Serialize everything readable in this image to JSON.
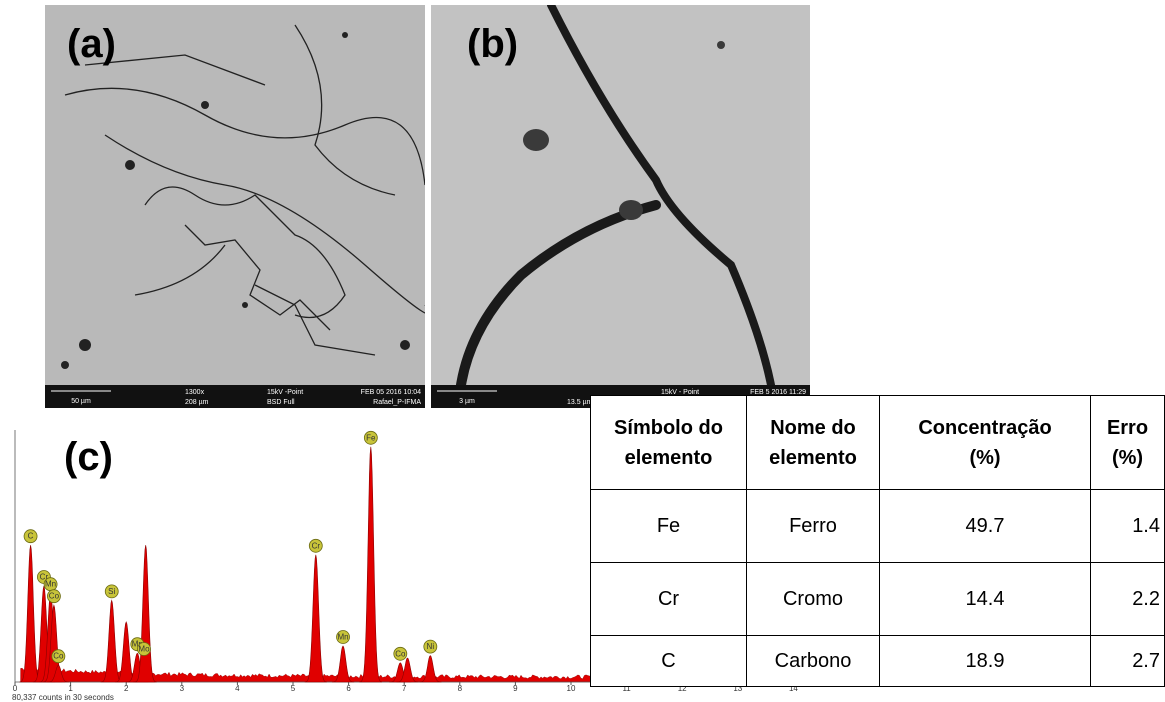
{
  "panels": {
    "a": "(a)",
    "b": "(b)",
    "c": "(c)"
  },
  "image_a": {
    "scale": "50 µm",
    "mag": "1300x",
    "field": "208 µm",
    "beam": "15kV -Point",
    "detector": "BSD Full",
    "date": "FEB 05 2016 10:04",
    "user": "Rafael_P-IFMA"
  },
  "image_b": {
    "scale": "3 µm",
    "field": "13.5 µm",
    "beam": "15kV - Point",
    "date": "FEB 5 2016 11:29"
  },
  "chart_data": {
    "type": "spectrum",
    "color": "#e00000",
    "x": [
      0.28,
      0.52,
      0.64,
      0.7,
      0.78,
      1.74,
      2.0,
      2.2,
      2.32,
      2.35,
      5.41,
      5.9,
      6.4,
      6.93,
      7.06,
      7.47
    ],
    "values": [
      57,
      40,
      37,
      32,
      7,
      34,
      25,
      12,
      10,
      57,
      53,
      15,
      98,
      8,
      10,
      11
    ],
    "labels": [
      "C",
      "Cr",
      "Mn",
      "Co",
      "Co",
      "Si",
      null,
      "Mn",
      "Mo",
      null,
      "Cr",
      "Mn",
      "Fe",
      "Co",
      null,
      "Ni"
    ],
    "xlim": [
      0,
      15
    ],
    "ylim": [
      0,
      100
    ],
    "xticks": [
      0,
      1,
      2,
      3,
      4,
      5,
      6,
      7,
      8,
      9,
      10,
      11,
      12,
      13,
      14
    ],
    "footer": "80,337 counts in 30 seconds"
  },
  "table": {
    "header": [
      [
        "Símbolo do",
        "elemento"
      ],
      [
        "Nome do",
        "elemento"
      ],
      [
        "Concentração",
        "(%)"
      ],
      [
        "Erro",
        "(%)"
      ]
    ],
    "rows": [
      [
        "Fe",
        "Ferro",
        "49.7",
        "1.4"
      ],
      [
        "Cr",
        "Cromo",
        "14.4",
        "2.2"
      ],
      [
        "C",
        "Carbono",
        "18.9",
        "2.7"
      ]
    ]
  }
}
